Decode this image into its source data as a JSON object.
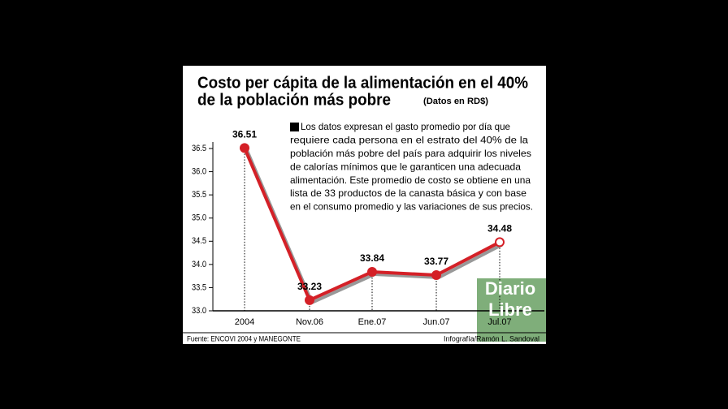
{
  "chart_data": {
    "type": "line",
    "title_lines": [
      "Costo per cápita de la alimentación en el 40%",
      "de la población más pobre"
    ],
    "subtitle": "(Datos en RD$)",
    "note_lines": [
      "Los datos expresan el gasto promedio por día que",
      "requiere cada persona en el estrato del 40% de la",
      "población más pobre del país para adquirir los niveles",
      "de calorías mínimos que le garanticen una adecuada",
      "alimentación. Este promedio de costo se obtiene en una",
      "lista de 33 productos de la canasta básica y con base",
      "en el consumo promedio y las variaciones de sus precios."
    ],
    "categories": [
      "2004",
      "Nov.06",
      "Ene.07",
      "Jun.07",
      "Jul.07"
    ],
    "values": [
      36.51,
      33.23,
      33.84,
      33.77,
      34.48
    ],
    "color": "#d42027",
    "hollow_last_marker": true,
    "ylim": [
      33.0,
      36.5
    ],
    "yticks": [
      {
        "value": 33.0,
        "label": "33.0"
      },
      {
        "value": 33.5,
        "label": "33.5"
      },
      {
        "value": 34.0,
        "label": "34.0"
      },
      {
        "value": 34.5,
        "label": "34.5"
      },
      {
        "value": 35.0,
        "label": "35.0"
      },
      {
        "value": 35.5,
        "label": "35.5"
      },
      {
        "value": 36.0,
        "label": "36.0"
      },
      {
        "value": 36.5,
        "label": "36.5"
      }
    ],
    "source": "Fuente: ENCOVI 2004 y MANEGONTE",
    "credit": "Infografía/Ramón L. Sandoval",
    "logo_lines": [
      "Diario",
      "Libre"
    ]
  }
}
